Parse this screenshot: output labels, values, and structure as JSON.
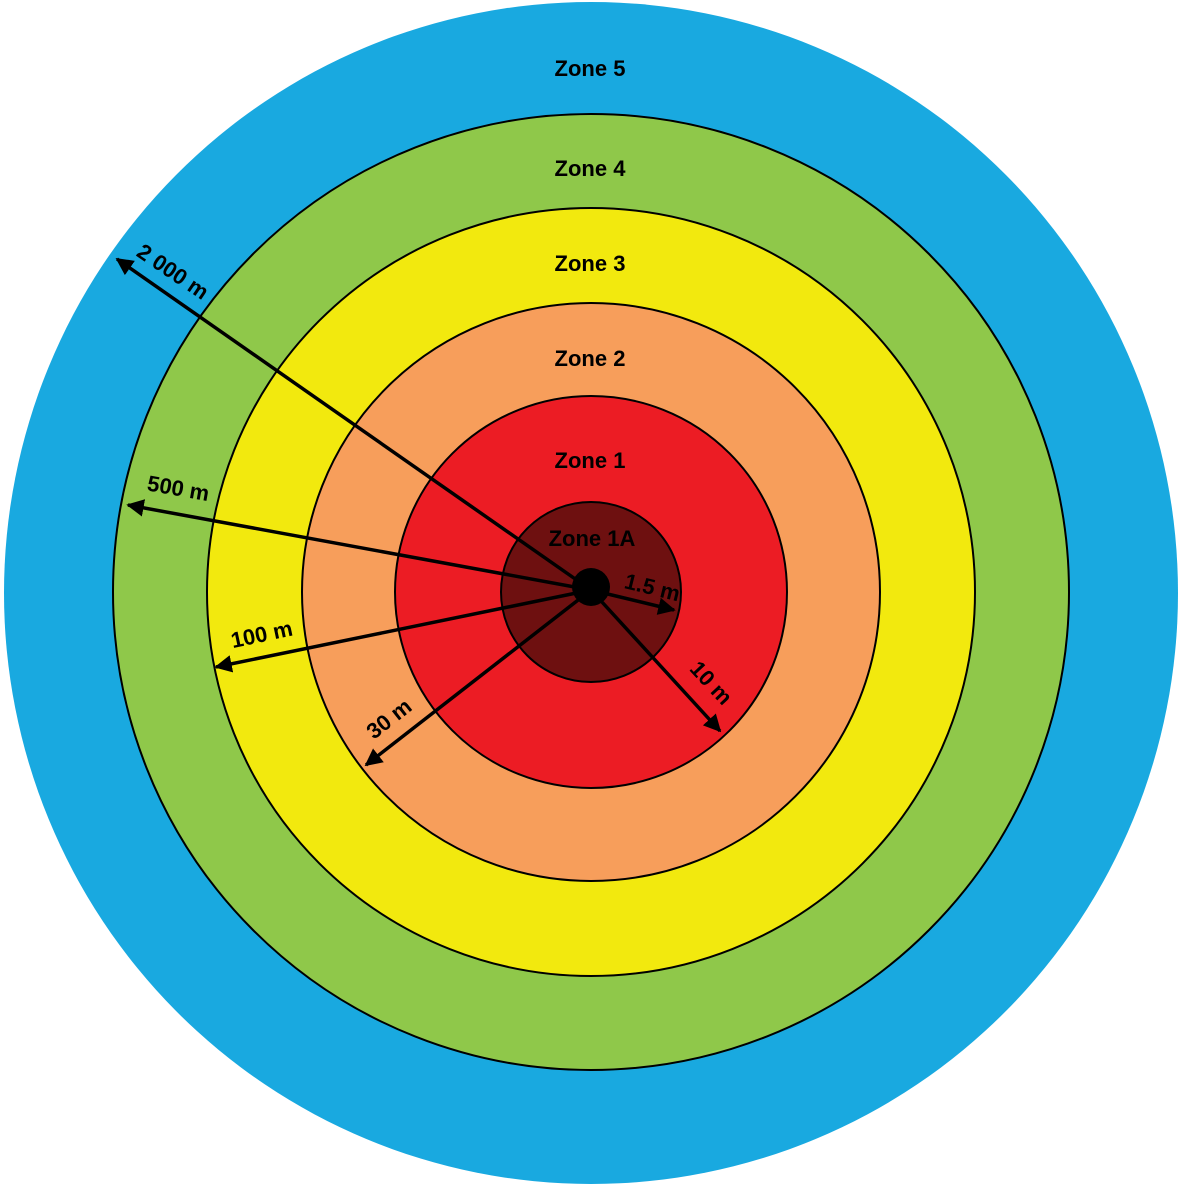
{
  "zones": [
    {
      "label": "Zone 5"
    },
    {
      "label": "Zone 4"
    },
    {
      "label": "Zone 3"
    },
    {
      "label": "Zone 2"
    },
    {
      "label": "Zone 1"
    },
    {
      "label": "Zone 1A"
    }
  ],
  "distances": [
    {
      "label": "2 000 m"
    },
    {
      "label": "500 m"
    },
    {
      "label": "100 m"
    },
    {
      "label": "30 m"
    },
    {
      "label": "10 m"
    },
    {
      "label": "1.5 m"
    }
  ]
}
